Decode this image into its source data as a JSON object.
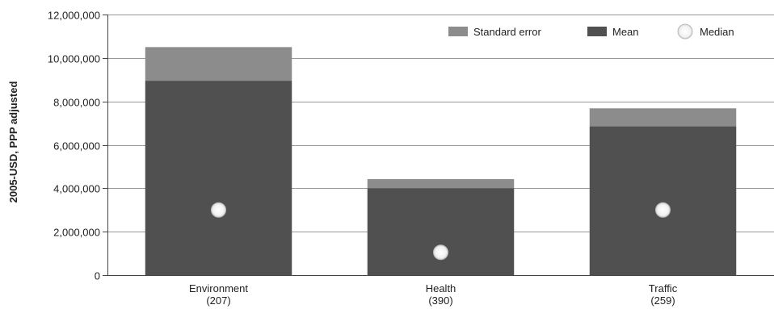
{
  "chart_data": {
    "type": "bar",
    "title": "",
    "ylabel": "2005-USD, PPP adjusted",
    "xlabel": "",
    "ylim": [
      0,
      12000000
    ],
    "yticks": [
      0,
      2000000,
      4000000,
      6000000,
      8000000,
      10000000,
      12000000
    ],
    "ytick_labels": [
      "0",
      "2,000,000",
      "4,000,000",
      "6,000,000",
      "8,000,000",
      "10,000,000",
      "12,000,000"
    ],
    "grid": true,
    "legend_position": "top-right",
    "categories": [
      {
        "name": "Environment",
        "count": "(207)"
      },
      {
        "name": "Health",
        "count": "(390)"
      },
      {
        "name": "Traffic",
        "count": "(259)"
      }
    ],
    "series": [
      {
        "name": "Mean",
        "values": [
          8950000,
          4000000,
          6850000
        ],
        "color": "#505050"
      },
      {
        "name": "Standard  error",
        "values": [
          1550000,
          420000,
          830000
        ],
        "color": "#8c8c8c"
      },
      {
        "name": "Median",
        "values": [
          3000000,
          1050000,
          3000000
        ],
        "color": "#ffffff"
      }
    ],
    "legend_order": [
      "Standard  error",
      "Mean",
      "Median"
    ],
    "colors": {
      "grid": "#999999",
      "axis": "#444444",
      "text": "#222222"
    }
  }
}
